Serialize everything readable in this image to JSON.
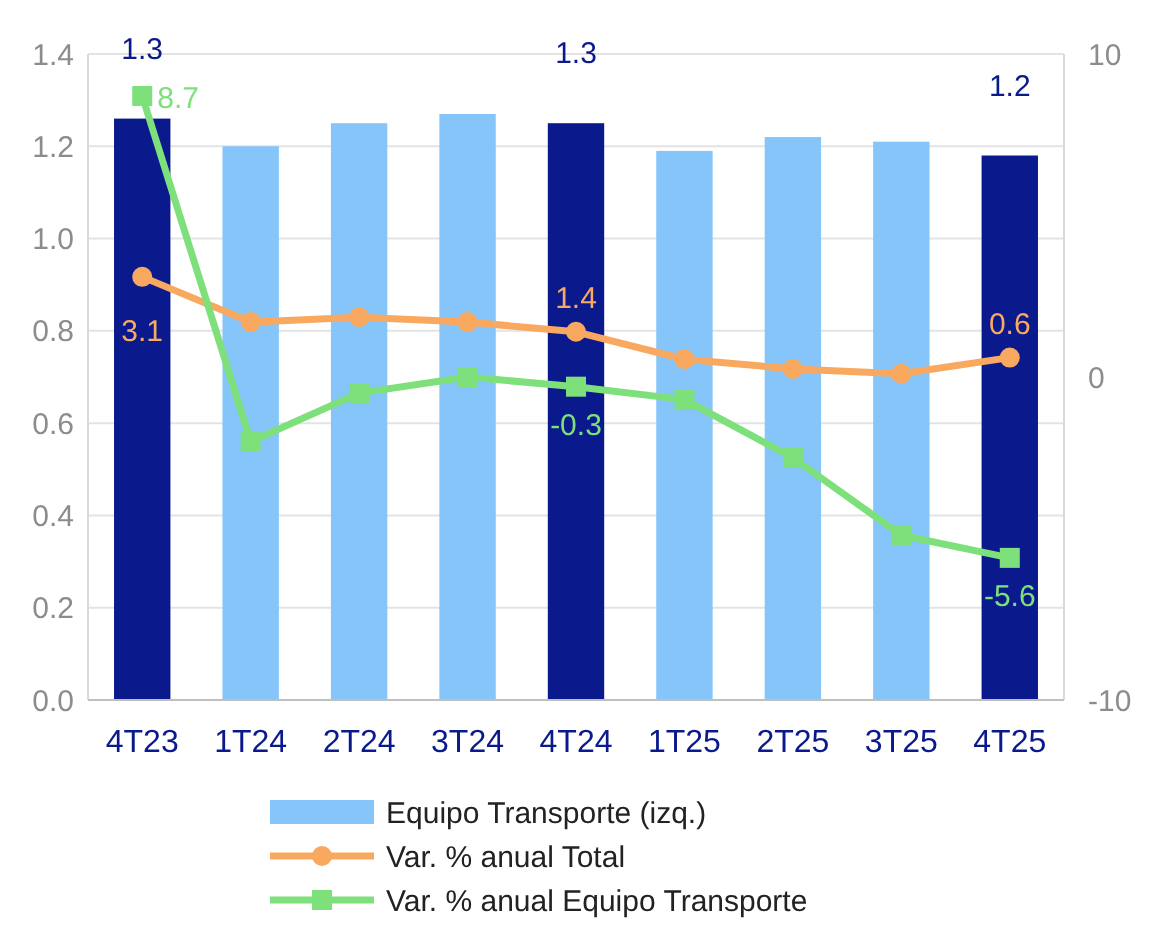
{
  "chart_data": {
    "type": "bar",
    "categories": [
      "4T23",
      "1T24",
      "2T24",
      "3T24",
      "4T24",
      "1T25",
      "2T25",
      "3T25",
      "4T25"
    ],
    "series": [
      {
        "name": "Equipo Transporte (izq.)",
        "color": "#85c5f9",
        "colors": [
          "#0a1a8c",
          "#85c5f9",
          "#85c5f9",
          "#85c5f9",
          "#0a1a8c",
          "#85c5f9",
          "#85c5f9",
          "#85c5f9",
          "#0a1a8c"
        ],
        "values": [
          1.26,
          1.2,
          1.25,
          1.27,
          1.25,
          1.19,
          1.22,
          1.21,
          1.18
        ],
        "value_labels": [
          "1.3",
          null,
          null,
          null,
          "1.3",
          null,
          null,
          null,
          "1.2"
        ]
      },
      {
        "name": "Var. % anual Total",
        "type": "line",
        "axis": "y2",
        "marker": "circle",
        "color": "#f9a860",
        "values": [
          3.1,
          1.7,
          1.85,
          1.7,
          1.4,
          0.55,
          0.25,
          0.1,
          0.6
        ],
        "value_labels": [
          "3.1",
          null,
          null,
          null,
          "1.4",
          null,
          null,
          null,
          "0.6"
        ]
      },
      {
        "name": "Var. % anual Equipo Transporte",
        "type": "line",
        "axis": "y2",
        "marker": "square",
        "color": "#7de07a",
        "values": [
          8.7,
          -2.0,
          -0.5,
          0,
          -0.3,
          -0.7,
          -2.5,
          -4.9,
          -5.6
        ],
        "value_labels": [
          "8.7",
          null,
          null,
          null,
          "-0.3",
          null,
          null,
          null,
          "-5.6"
        ]
      }
    ],
    "ylim": [
      0,
      1.4
    ],
    "yticks": [
      "0.0",
      "0.2",
      "0.4",
      "0.6",
      "0.8",
      "1.0",
      "1.2",
      "1.4"
    ],
    "y2lim": [
      -10,
      10
    ],
    "y2ticks": [
      -10,
      0,
      10
    ],
    "grid": "y",
    "legend": "bottom",
    "line_style": "solid"
  }
}
